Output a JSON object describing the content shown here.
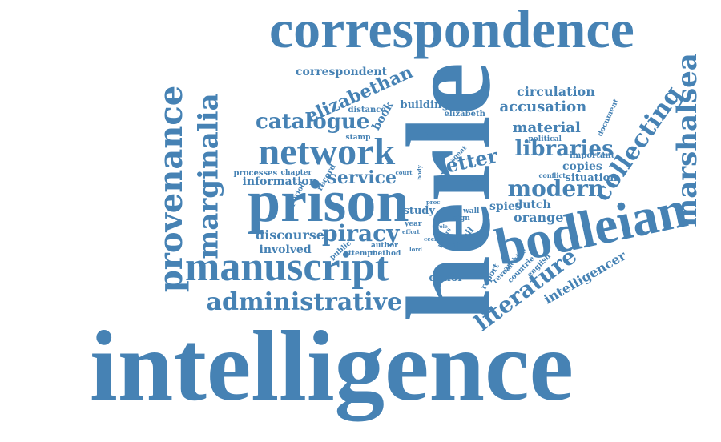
{
  "color": "#4682b4",
  "words": [
    "correspondence",
    "herle",
    "intelligence",
    "prison",
    "bodleian",
    "manuscript",
    "network",
    "provenance",
    "marginalia",
    "marshalsea",
    "administrative",
    "literature",
    "collecting",
    "elizabethan",
    "catalogue",
    "libraries",
    "letter",
    "modern",
    "piracy",
    "intelligencer",
    "material",
    "accusation",
    "circulation",
    "correspondent",
    "service",
    "spies",
    "dutch",
    "orange",
    "discourse",
    "involved",
    "information",
    "processes",
    "book",
    "building",
    "elizabeth",
    "distance",
    "copies",
    "important",
    "situation",
    "political",
    "document",
    "conflict",
    "donor",
    "study",
    "wall",
    "report",
    "reveal",
    "countrie",
    "english",
    "archive",
    "detail",
    "sign",
    "year",
    "author",
    "method",
    "attempt",
    "public",
    "record",
    "period",
    "chapter",
    "stamp",
    "archival",
    "court",
    "body",
    "life",
    "most",
    "agent",
    "proc",
    "effort",
    "cecil",
    "papers",
    "lord",
    "role"
  ]
}
